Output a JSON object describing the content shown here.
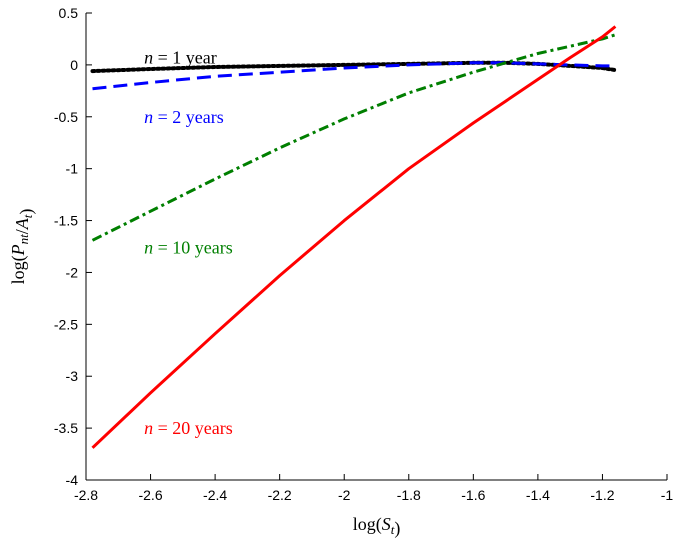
{
  "chart_data": {
    "type": "line",
    "title": "",
    "xlabel": "log(S_t)",
    "ylabel": "log(P_nt/A_t)",
    "xlim": [
      -2.8,
      -1.0
    ],
    "ylim": [
      -4.0,
      0.5
    ],
    "xticks": [
      -2.8,
      -2.6,
      -2.4,
      -2.2,
      -2.0,
      -1.8,
      -1.6,
      -1.4,
      -1.2,
      -1.0
    ],
    "yticks": [
      0.5,
      0,
      -0.5,
      -1,
      -1.5,
      -2,
      -2.5,
      -3,
      -3.5,
      -4
    ],
    "xtick_labels": [
      "-2.8",
      "-2.6",
      "-2.4",
      "-2.2",
      "-2",
      "-1.8",
      "-1.6",
      "-1.4",
      "-1.2",
      "-1"
    ],
    "ytick_labels": [
      "0.5",
      "0",
      "-0.5",
      "-1",
      "-1.5",
      "-2",
      "-2.5",
      "-3",
      "-3.5",
      "-4"
    ],
    "grid": false,
    "series": [
      {
        "name": "n = 1 year",
        "color": "#000000",
        "dash": "dotted",
        "x": [
          -2.78,
          -2.6,
          -2.4,
          -2.2,
          -2.0,
          -1.8,
          -1.6,
          -1.5,
          -1.4,
          -1.3,
          -1.2,
          -1.16
        ],
        "y": [
          -0.06,
          -0.04,
          -0.02,
          -0.01,
          0.0,
          0.01,
          0.02,
          0.02,
          0.01,
          -0.01,
          -0.03,
          -0.05
        ]
      },
      {
        "name": "n = 2 years",
        "color": "#0000ff",
        "dash": "dashed",
        "x": [
          -2.78,
          -2.6,
          -2.4,
          -2.2,
          -2.0,
          -1.8,
          -1.6,
          -1.5,
          -1.4,
          -1.3,
          -1.2,
          -1.16
        ],
        "y": [
          -0.23,
          -0.17,
          -0.11,
          -0.07,
          -0.03,
          0.0,
          0.02,
          0.02,
          0.01,
          0.0,
          -0.01,
          -0.01
        ]
      },
      {
        "name": "n = 10 years",
        "color": "#007f00",
        "dash": "dashdot",
        "x": [
          -2.78,
          -2.6,
          -2.4,
          -2.2,
          -2.0,
          -1.8,
          -1.6,
          -1.5,
          -1.4,
          -1.3,
          -1.2,
          -1.16
        ],
        "y": [
          -1.69,
          -1.41,
          -1.1,
          -0.8,
          -0.52,
          -0.27,
          -0.07,
          0.02,
          0.11,
          0.18,
          0.25,
          0.29
        ]
      },
      {
        "name": "n = 20 years",
        "color": "#ff0000",
        "dash": "solid",
        "x": [
          -2.78,
          -2.6,
          -2.4,
          -2.2,
          -2.0,
          -1.8,
          -1.6,
          -1.5,
          -1.4,
          -1.3,
          -1.2,
          -1.16
        ],
        "y": [
          -3.69,
          -3.16,
          -2.59,
          -2.03,
          -1.5,
          -1.0,
          -0.56,
          -0.35,
          -0.14,
          0.07,
          0.27,
          0.37
        ]
      }
    ],
    "annotations": [
      {
        "text": "n = 1 year",
        "x": -2.62,
        "y": 0.07,
        "color": "#000000"
      },
      {
        "text": "n = 2 years",
        "x": -2.62,
        "y": -0.5,
        "color": "#0000ff"
      },
      {
        "text": "n = 10 years",
        "x": -2.62,
        "y": -1.76,
        "color": "#007f00"
      },
      {
        "text": "n = 20 years",
        "x": -2.62,
        "y": -3.5,
        "color": "#ff0000"
      }
    ]
  }
}
